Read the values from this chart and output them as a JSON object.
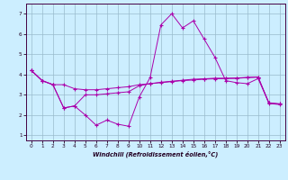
{
  "background_color": "#cceeff",
  "grid_color": "#99bbcc",
  "line_color": "#aa00aa",
  "xlabel": "Windchill (Refroidissement éolien,°C)",
  "ylim": [
    0.75,
    7.5
  ],
  "xlim": [
    -0.5,
    23.5
  ],
  "yticks": [
    1,
    2,
    3,
    4,
    5,
    6,
    7
  ],
  "xticks": [
    0,
    1,
    2,
    3,
    4,
    5,
    6,
    7,
    8,
    9,
    10,
    11,
    12,
    13,
    14,
    15,
    16,
    17,
    18,
    19,
    20,
    21,
    22,
    23
  ],
  "line1_x": [
    0,
    1,
    2,
    3,
    4,
    5,
    6,
    7,
    8,
    9,
    10,
    11,
    12,
    13,
    14,
    15,
    16,
    17,
    18,
    19,
    20,
    21,
    22,
    23
  ],
  "line1_y": [
    4.2,
    3.7,
    3.5,
    3.5,
    3.3,
    3.25,
    3.25,
    3.3,
    3.35,
    3.4,
    3.5,
    3.55,
    3.6,
    3.65,
    3.7,
    3.73,
    3.77,
    3.79,
    3.8,
    3.81,
    3.85,
    3.87,
    2.6,
    2.55
  ],
  "line2_x": [
    0,
    1,
    2,
    3,
    4,
    5,
    6,
    7,
    8,
    9,
    10,
    11,
    12,
    13,
    14,
    15,
    16,
    17,
    18,
    19,
    20,
    21,
    22,
    23
  ],
  "line2_y": [
    4.2,
    3.7,
    3.5,
    2.35,
    2.45,
    2.0,
    1.5,
    1.75,
    1.55,
    1.45,
    2.9,
    3.85,
    6.45,
    7.0,
    6.3,
    6.65,
    5.75,
    4.85,
    3.7,
    3.6,
    3.55,
    3.8,
    2.6,
    2.55
  ],
  "line3_x": [
    0,
    1,
    2,
    3,
    4,
    5,
    6,
    7,
    8,
    9,
    10,
    11,
    12,
    13,
    14,
    15,
    16,
    17,
    18,
    19,
    20,
    21,
    22,
    23
  ],
  "line3_y": [
    4.2,
    3.7,
    3.5,
    2.35,
    2.45,
    3.0,
    3.0,
    3.05,
    3.1,
    3.15,
    3.45,
    3.55,
    3.62,
    3.67,
    3.72,
    3.77,
    3.79,
    3.82,
    3.82,
    3.83,
    3.86,
    3.88,
    2.57,
    2.52
  ]
}
